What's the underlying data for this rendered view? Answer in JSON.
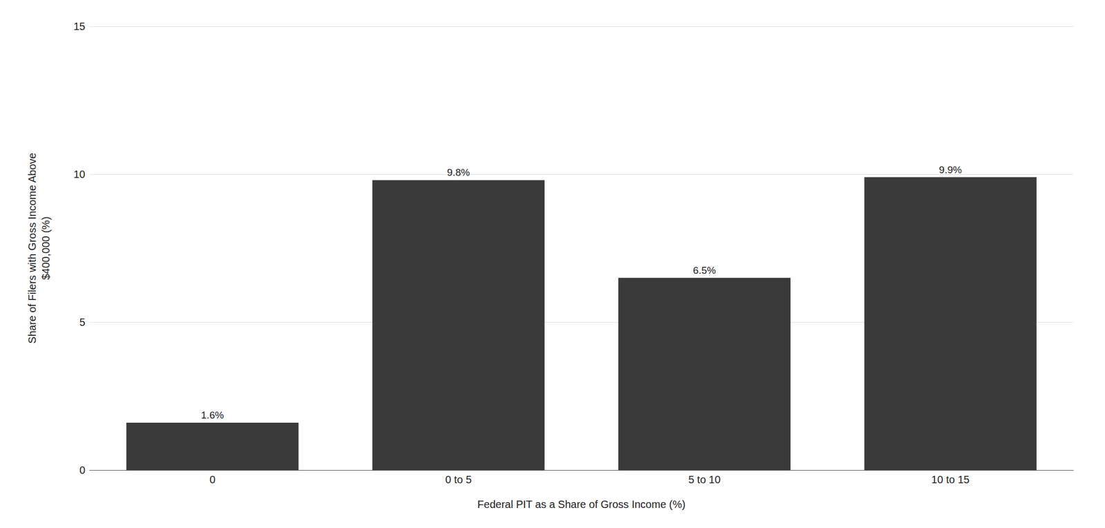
{
  "chart_data": {
    "type": "bar",
    "categories": [
      "0",
      "0 to 5",
      "5 to 10",
      "10 to 15"
    ],
    "values": [
      1.6,
      9.8,
      6.5,
      9.9
    ],
    "value_labels": [
      "1.6%",
      "9.8%",
      "6.5%",
      "9.9%"
    ],
    "data_labels": true,
    "color": "#3a3a3a",
    "xlabel": "Federal PIT as a Share of Gross Income (%)",
    "ylabel": "Share of Filers with Gross Income Above\n$400,000 (%)",
    "ylim": [
      0,
      15
    ],
    "yticks": [
      0,
      5,
      10,
      15
    ],
    "grid": true
  }
}
